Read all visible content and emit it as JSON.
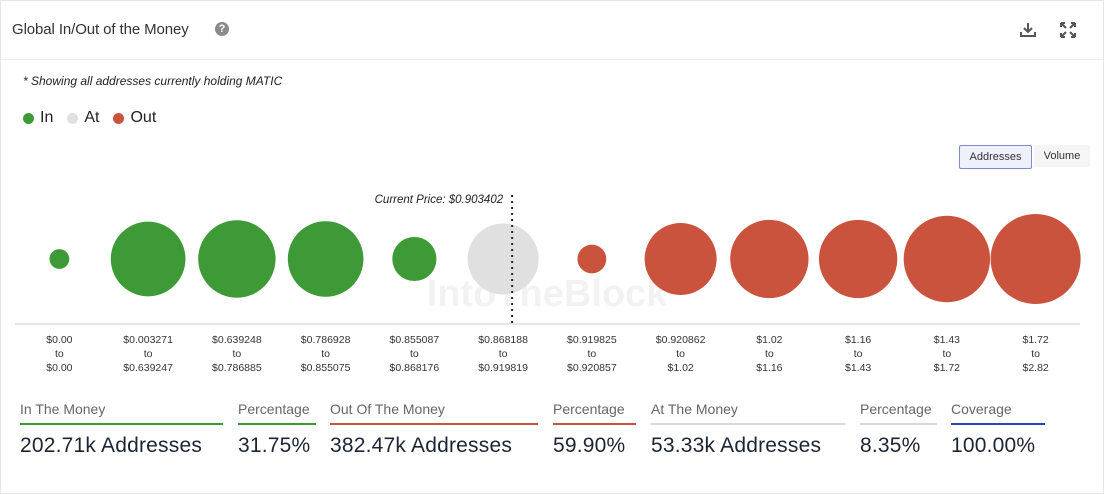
{
  "header": {
    "title": "Global In/Out of the Money",
    "help_glyph": "?",
    "icons": [
      "download-icon",
      "expand-icon"
    ]
  },
  "note": "* Showing all addresses currently holding MATIC",
  "legend": [
    {
      "label": "In",
      "color": "#3e9a37"
    },
    {
      "label": "At",
      "color": "#e0e0e0"
    },
    {
      "label": "Out",
      "color": "#c9533c"
    }
  ],
  "toggle": {
    "addresses": "Addresses",
    "volume": "Volume",
    "selected": "Addresses"
  },
  "watermark": "IntoTheBlock",
  "chart_data": {
    "type": "bubble",
    "current_price_label": "Current Price: $0.903402",
    "current_price": 0.903402,
    "colors": {
      "In": "#3e9a37",
      "At": "#e0e0e0",
      "Out": "#c9533c"
    },
    "buckets": [
      {
        "from": "$0.00",
        "to": "$0.00",
        "status": "In",
        "size": 0.22
      },
      {
        "from": "$0.003271",
        "to": "$0.639247",
        "status": "In",
        "size": 0.83
      },
      {
        "from": "$0.639248",
        "to": "$0.786885",
        "status": "In",
        "size": 0.86
      },
      {
        "from": "$0.786928",
        "to": "$0.855075",
        "status": "In",
        "size": 0.84
      },
      {
        "from": "$0.855087",
        "to": "$0.868176",
        "status": "In",
        "size": 0.49
      },
      {
        "from": "$0.868188",
        "to": "$0.919819",
        "status": "At",
        "size": 0.79
      },
      {
        "from": "$0.919825",
        "to": "$0.920857",
        "status": "Out",
        "size": 0.32
      },
      {
        "from": "$0.920862",
        "to": "$1.02",
        "status": "Out",
        "size": 0.8
      },
      {
        "from": "$1.02",
        "to": "$1.16",
        "status": "Out",
        "size": 0.87
      },
      {
        "from": "$1.16",
        "to": "$1.43",
        "status": "Out",
        "size": 0.87
      },
      {
        "from": "$1.43",
        "to": "$1.72",
        "status": "Out",
        "size": 0.96
      },
      {
        "from": "$1.72",
        "to": "$2.82",
        "status": "Out",
        "size": 1.0
      }
    ],
    "connector": "to"
  },
  "stats": [
    {
      "label": "In The Money",
      "value": "202.71k Addresses",
      "color": "#3e9a37"
    },
    {
      "label": "Percentage",
      "value": "31.75%",
      "color": "#3e9a37"
    },
    {
      "label": "Out Of The Money",
      "value": "382.47k Addresses",
      "color": "#c9533c"
    },
    {
      "label": "Percentage",
      "value": "59.90%",
      "color": "#c9533c"
    },
    {
      "label": "At The Money",
      "value": "53.33k Addresses",
      "color": "#d8d8d8"
    },
    {
      "label": "Percentage",
      "value": "8.35%",
      "color": "#d8d8d8"
    },
    {
      "label": "Coverage",
      "value": "100.00%",
      "color": "#2e46b8"
    }
  ]
}
